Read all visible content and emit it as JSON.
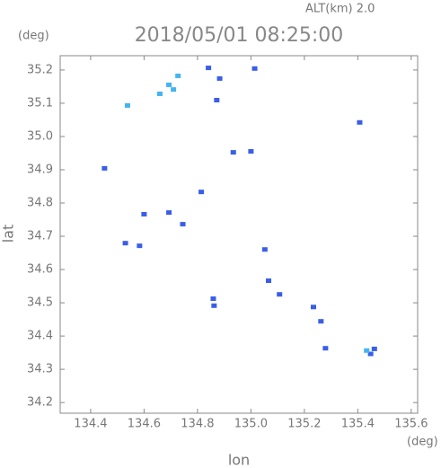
{
  "chart_data": {
    "type": "scatter",
    "title": "2018/05/01 08:25:00",
    "subtitle": "ALT(km) 2.0",
    "y_unit": "(deg)",
    "x_unit": "(deg)",
    "ylabel": "lat",
    "xlabel": "lon",
    "xlim": [
      134.286,
      135.624
    ],
    "ylim": [
      34.168,
      35.243
    ],
    "xticks": [
      134.4,
      134.6,
      134.8,
      {
        "value": 135,
        "label": "135.0"
      },
      135.2,
      135.4,
      135.6
    ],
    "yticks": [
      34.2,
      34.3,
      34.4,
      34.5,
      34.6,
      34.7,
      34.8,
      34.9,
      {
        "value": 35,
        "label": "35.0"
      },
      35.1,
      35.2
    ],
    "series": [
      {
        "color": "#3a5ee8",
        "x": [
          134.841,
          135.014,
          134.883,
          134.872,
          134.934,
          135.0,
          135.407,
          134.814,
          134.6,
          134.693,
          134.583,
          135.052,
          135.066,
          135.107,
          134.859,
          134.862,
          135.234,
          135.262,
          135.279,
          135.462,
          135.448,
          134.452,
          134.53,
          134.745
        ],
        "values": [
          35.205,
          35.203,
          35.173,
          35.108,
          34.951,
          34.954,
          35.041,
          34.832,
          34.765,
          34.77,
          34.67,
          34.659,
          34.565,
          34.524,
          34.511,
          34.49,
          34.486,
          34.443,
          34.362,
          34.36,
          34.345,
          34.903,
          34.678,
          34.735
        ]
      },
      {
        "color": "#44b4f0",
        "x": [
          134.538,
          134.693,
          134.659,
          134.727,
          134.71,
          135.433
        ],
        "values": [
          35.092,
          35.154,
          35.127,
          35.181,
          35.14,
          34.355
        ]
      }
    ]
  }
}
